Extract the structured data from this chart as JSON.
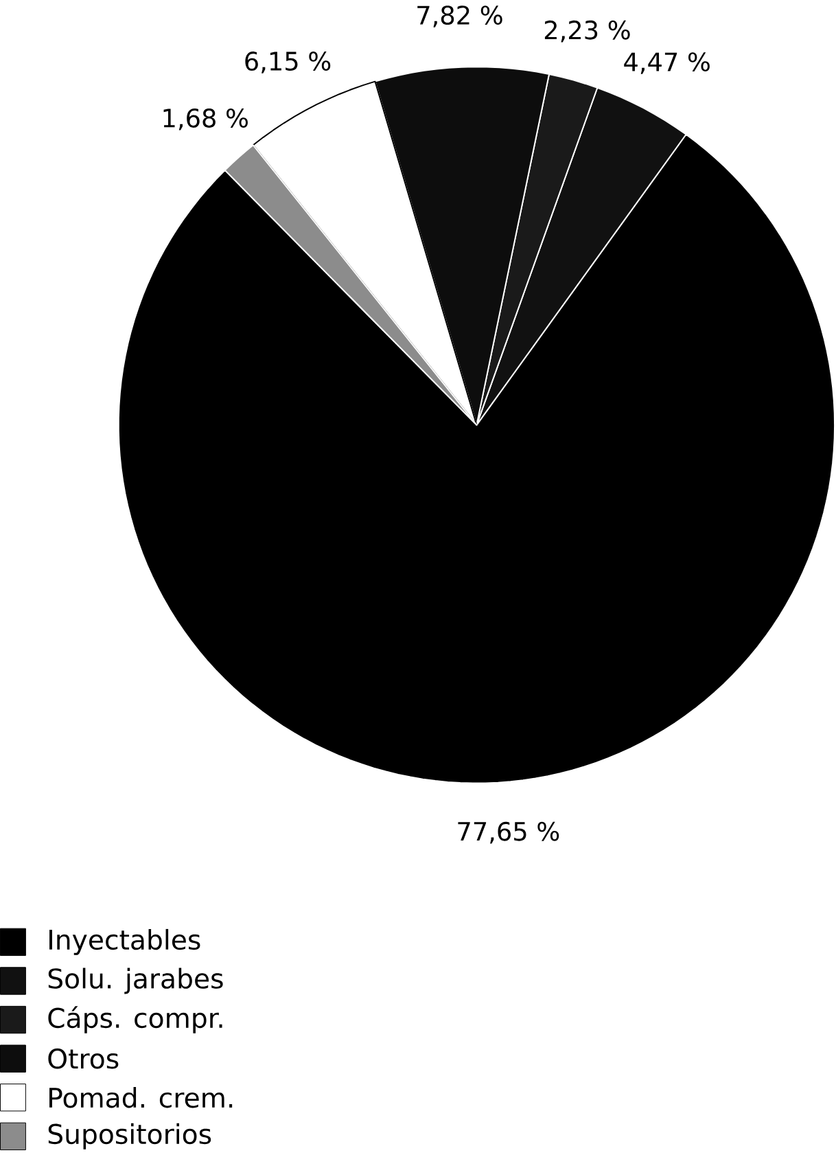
{
  "chart_data": {
    "type": "pie",
    "categories": [
      "Inyectables",
      "Solu. jarabes",
      "Cáps. compr.",
      "Otros",
      "Pomad. crem.",
      "Supositorios"
    ],
    "values": [
      77.65,
      4.47,
      2.23,
      7.82,
      6.15,
      1.68
    ],
    "colors": [
      "#000000",
      "#111111",
      "#1a1a1a",
      "#0d0d0d",
      "#ffffff",
      "#8c8c8c"
    ],
    "value_labels": [
      "77,65 %",
      "4,47 %",
      "2,23 %",
      "7,82 %",
      "6,15 %",
      "1,68 %"
    ],
    "legend": "bottom left"
  }
}
